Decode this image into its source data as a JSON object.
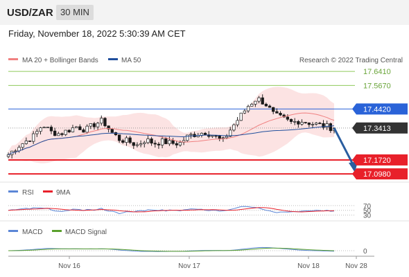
{
  "header": {
    "pair": "USD/ZAR",
    "timeframe": "30 MIN"
  },
  "datetime": "Friday, November 18, 2022 5:30:39 AM CET",
  "legend": {
    "ma_bb": "MA 20 + Bollinger Bands",
    "ma50": "MA 50",
    "research": "Research © 2022 Trading Central",
    "rsi": "RSI",
    "rsi_ma": "9MA",
    "macd": "MACD",
    "macd_signal": "MACD Signal"
  },
  "colors": {
    "bollinger": "#f08080",
    "ma50": "#1f4e9c",
    "resistance": "#8fc95a",
    "pivot": "#2a63d8",
    "support": "#e8202a",
    "current": "#333333",
    "arrow": "#2a5d9f",
    "rsi": "#5b86d6",
    "rsi_ma": "#e8202a",
    "macd": "#5b86d6",
    "macd_signal": "#5aa02c"
  },
  "chart_data": {
    "type": "candlestick",
    "x_ticks": [
      "Nov 16",
      "Nov 17",
      "Nov 18",
      "Nov 28"
    ],
    "ylim": [
      17.08,
      17.66
    ],
    "levels": [
      {
        "label": "17.6410",
        "value": 17.641,
        "kind": "resistance"
      },
      {
        "label": "17.5670",
        "value": 17.567,
        "kind": "resistance"
      },
      {
        "label": "17.4420",
        "value": 17.442,
        "kind": "pivot"
      },
      {
        "label": "17.3413",
        "value": 17.3413,
        "kind": "current"
      },
      {
        "label": "17.1720",
        "value": 17.172,
        "kind": "support"
      },
      {
        "label": "17.0980",
        "value": 17.098,
        "kind": "support"
      }
    ],
    "close_series": [
      17.2,
      17.24,
      17.27,
      17.3,
      17.36,
      17.32,
      17.31,
      17.33,
      17.35,
      17.33,
      17.36,
      17.38,
      17.32,
      17.28,
      17.27,
      17.25,
      17.28,
      17.26,
      17.27,
      17.26,
      17.26,
      17.3,
      17.31,
      17.32,
      17.3,
      17.27,
      17.34,
      17.4,
      17.46,
      17.5,
      17.47,
      17.41,
      17.39,
      17.37,
      17.38,
      17.37,
      17.36,
      17.35,
      17.34
    ],
    "rsi": {
      "levels": [
        70,
        50,
        30
      ]
    },
    "macd": {
      "levels": [
        0
      ]
    }
  }
}
